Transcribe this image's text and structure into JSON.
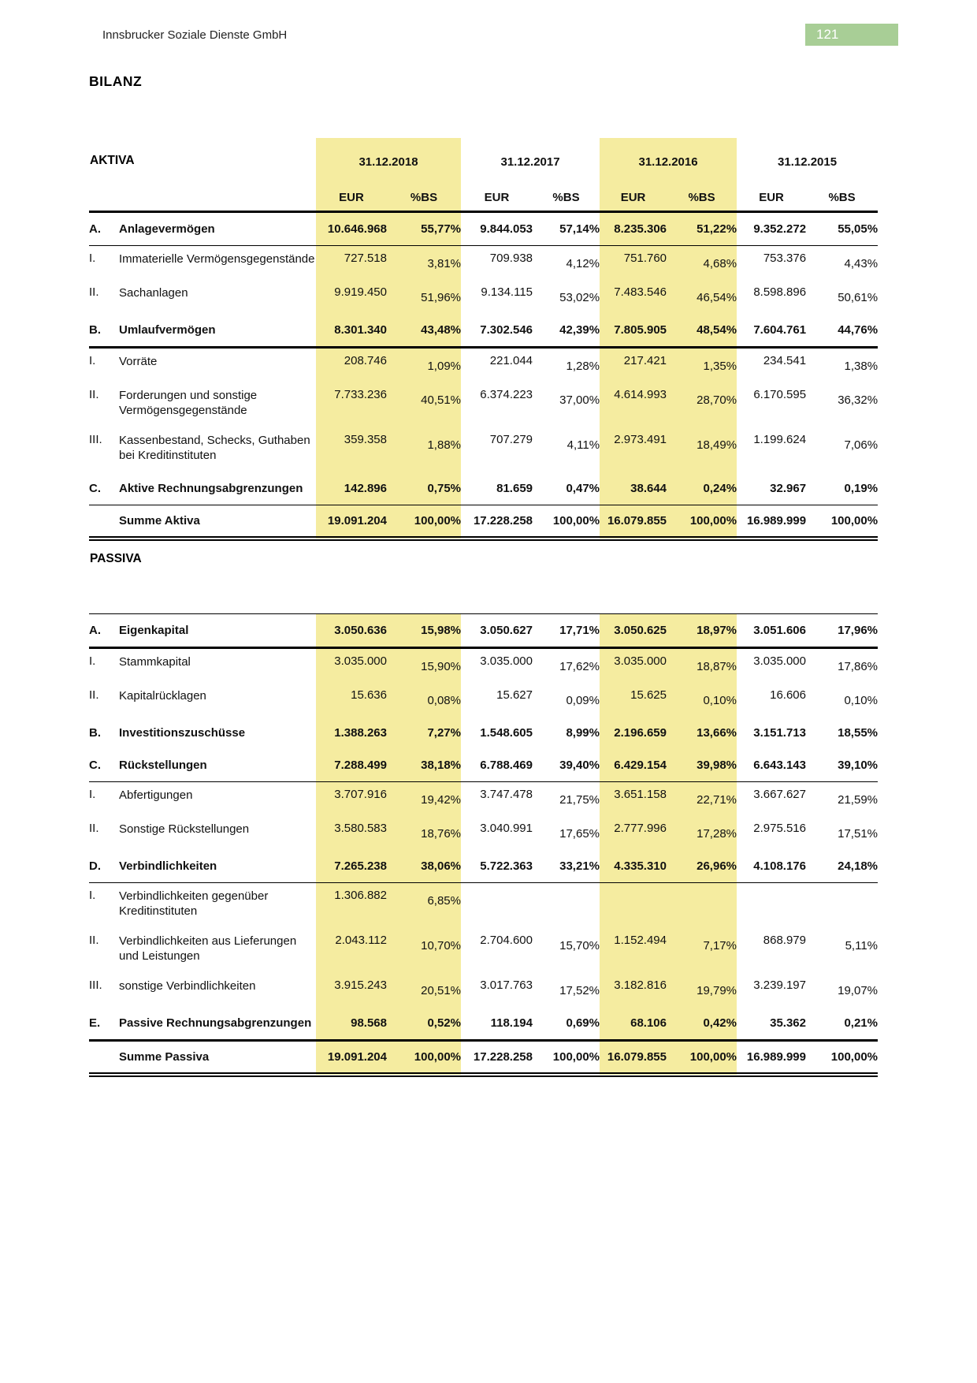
{
  "page": {
    "header_left": "Innsbrucker Soziale Dienste GmbH",
    "page_number": "121",
    "title": "BILANZ"
  },
  "colors": {
    "highlight_yellow": "#F5ECA0",
    "badge_green": "#A8CE96"
  },
  "columns": {
    "dates": [
      "31.12.2018",
      "31.12.2017",
      "31.12.2016",
      "31.12.2015"
    ],
    "unit_labels": [
      "EUR",
      "%BS"
    ],
    "highlighted_dates": [
      "31.12.2018",
      "31.12.2016"
    ]
  },
  "aktiva": {
    "section_label": "AKTIVA",
    "rows": [
      {
        "letter": "A.",
        "label": "Anlagevermögen",
        "type": "section",
        "border_bottom": "thin",
        "values": [
          "10.646.968",
          "55,77%",
          "9.844.053",
          "57,14%",
          "8.235.306",
          "51,22%",
          "9.352.272",
          "55,05%"
        ]
      },
      {
        "letter": "I.",
        "label": "Immaterielle Vermögensgegenstände",
        "type": "item",
        "values": [
          "727.518",
          "3,81%",
          "709.938",
          "4,12%",
          "751.760",
          "4,68%",
          "753.376",
          "4,43%"
        ]
      },
      {
        "letter": "II.",
        "label": "Sachanlagen",
        "type": "item",
        "values": [
          "9.919.450",
          "51,96%",
          "9.134.115",
          "53,02%",
          "7.483.546",
          "46,54%",
          "8.598.896",
          "50,61%"
        ]
      },
      {
        "letter": "B.",
        "label": "Umlaufvermögen",
        "type": "section",
        "border_bottom": "thick",
        "values": [
          "8.301.340",
          "43,48%",
          "7.302.546",
          "42,39%",
          "7.805.905",
          "48,54%",
          "7.604.761",
          "44,76%"
        ]
      },
      {
        "letter": "I.",
        "label": "Vorräte",
        "type": "item",
        "values": [
          "208.746",
          "1,09%",
          "221.044",
          "1,28%",
          "217.421",
          "1,35%",
          "234.541",
          "1,38%"
        ]
      },
      {
        "letter": "II.",
        "label": "Forderungen und sonstige Vermögensgegenstände",
        "type": "item",
        "values": [
          "7.733.236",
          "40,51%",
          "6.374.223",
          "37,00%",
          "4.614.993",
          "28,70%",
          "6.170.595",
          "36,32%"
        ]
      },
      {
        "letter": "III.",
        "label": "Kassenbestand, Schecks, Guthaben bei Kreditinstituten",
        "type": "item",
        "values": [
          "359.358",
          "1,88%",
          "707.279",
          "4,11%",
          "2.973.491",
          "18,49%",
          "1.199.624",
          "7,06%"
        ]
      },
      {
        "letter": "C.",
        "label": "Aktive Rechnungsabgrenzungen",
        "type": "section",
        "border_bottom": "thin",
        "values": [
          "142.896",
          "0,75%",
          "81.659",
          "0,47%",
          "38.644",
          "0,24%",
          "32.967",
          "0,19%"
        ]
      },
      {
        "letter": "",
        "label": "Summe Aktiva",
        "type": "sum",
        "border_bottom": "double",
        "values": [
          "19.091.204",
          "100,00%",
          "17.228.258",
          "100,00%",
          "16.079.855",
          "100,00%",
          "16.989.999",
          "100,00%"
        ]
      }
    ]
  },
  "passiva": {
    "section_label": "PASSIVA",
    "rows": [
      {
        "letter": "A.",
        "label": "Eigenkapital",
        "type": "section",
        "border_top": "thin",
        "border_bottom": "thick",
        "values": [
          "3.050.636",
          "15,98%",
          "3.050.627",
          "17,71%",
          "3.050.625",
          "18,97%",
          "3.051.606",
          "17,96%"
        ]
      },
      {
        "letter": "I.",
        "label": "Stammkapital",
        "type": "item",
        "values": [
          "3.035.000",
          "15,90%",
          "3.035.000",
          "17,62%",
          "3.035.000",
          "18,87%",
          "3.035.000",
          "17,86%"
        ]
      },
      {
        "letter": "II.",
        "label": "Kapitalrücklagen",
        "type": "item",
        "values": [
          "15.636",
          "0,08%",
          "15.627",
          "0,09%",
          "15.625",
          "0,10%",
          "16.606",
          "0,10%"
        ]
      },
      {
        "letter": "B.",
        "label": "Investitionszuschüsse",
        "type": "section",
        "values": [
          "1.388.263",
          "7,27%",
          "1.548.605",
          "8,99%",
          "2.196.659",
          "13,66%",
          "3.151.713",
          "18,55%"
        ]
      },
      {
        "letter": "C.",
        "label": "Rückstellungen",
        "type": "section",
        "border_bottom": "thin",
        "values": [
          "7.288.499",
          "38,18%",
          "6.788.469",
          "39,40%",
          "6.429.154",
          "39,98%",
          "6.643.143",
          "39,10%"
        ]
      },
      {
        "letter": "I.",
        "label": "Abfertigungen",
        "type": "item",
        "values": [
          "3.707.916",
          "19,42%",
          "3.747.478",
          "21,75%",
          "3.651.158",
          "22,71%",
          "3.667.627",
          "21,59%"
        ]
      },
      {
        "letter": "II.",
        "label": "Sonstige Rückstellungen",
        "type": "item",
        "values": [
          "3.580.583",
          "18,76%",
          "3.040.991",
          "17,65%",
          "2.777.996",
          "17,28%",
          "2.975.516",
          "17,51%"
        ]
      },
      {
        "letter": "D.",
        "label": "Verbindlichkeiten",
        "type": "section",
        "border_bottom": "thin",
        "values": [
          "7.265.238",
          "38,06%",
          "5.722.363",
          "33,21%",
          "4.335.310",
          "26,96%",
          "4.108.176",
          "24,18%"
        ]
      },
      {
        "letter": "I.",
        "label": "Verbindlichkeiten gegenüber Kreditinstituten",
        "type": "item",
        "values": [
          "1.306.882",
          "6,85%",
          "",
          "",
          "",
          "",
          "",
          ""
        ]
      },
      {
        "letter": "II.",
        "label": "Verbindlichkeiten aus Lieferungen und Leistungen",
        "type": "item",
        "values": [
          "2.043.112",
          "10,70%",
          "2.704.600",
          "15,70%",
          "1.152.494",
          "7,17%",
          "868.979",
          "5,11%"
        ]
      },
      {
        "letter": "III.",
        "label": "sonstige Verbindlichkeiten",
        "type": "item",
        "values": [
          "3.915.243",
          "20,51%",
          "3.017.763",
          "17,52%",
          "3.182.816",
          "19,79%",
          "3.239.197",
          "19,07%"
        ]
      },
      {
        "letter": "E.",
        "label": "Passive Rechnungsabgrenzungen",
        "type": "section",
        "border_bottom": "thick",
        "values": [
          "98.568",
          "0,52%",
          "118.194",
          "0,69%",
          "68.106",
          "0,42%",
          "35.362",
          "0,21%"
        ]
      },
      {
        "letter": "",
        "label": "Summe Passiva",
        "type": "sum",
        "border_bottom": "double",
        "values": [
          "19.091.204",
          "100,00%",
          "17.228.258",
          "100,00%",
          "16.079.855",
          "100,00%",
          "16.989.999",
          "100,00%"
        ]
      }
    ]
  }
}
